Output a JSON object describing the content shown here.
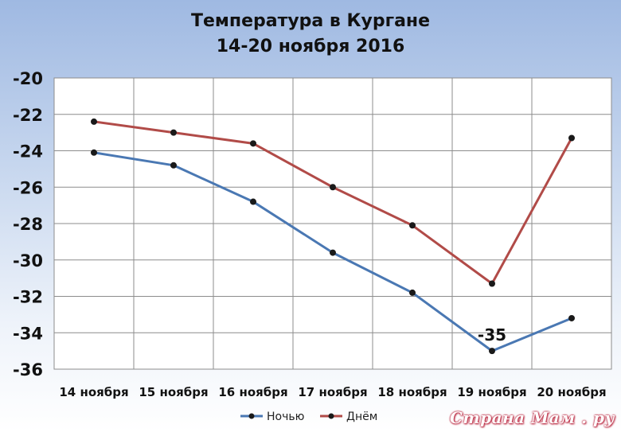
{
  "chart_data": {
    "type": "line",
    "title": "Температура в Кургане",
    "subtitle": "14-20 ноября 2016",
    "categories": [
      "14 ноября",
      "15 ноября",
      "16 ноября",
      "17 ноября",
      "18 ноября",
      "19 ноября",
      "20 ноября"
    ],
    "series": [
      {
        "name": "Ночью",
        "color": "#4a78b3",
        "values": [
          -24.1,
          -24.8,
          -26.8,
          -29.6,
          -31.8,
          -35.0,
          -33.2
        ]
      },
      {
        "name": "Днём",
        "color": "#b14b48",
        "values": [
          -22.4,
          -23.0,
          -23.6,
          -26.0,
          -28.1,
          -31.3,
          -23.3
        ]
      }
    ],
    "ylim": [
      -36,
      -20
    ],
    "y_ticks": [
      "-20",
      "-22",
      "-24",
      "-26",
      "-28",
      "-30",
      "-32",
      "-34",
      "-36"
    ],
    "grid": true,
    "legend": "bottom",
    "annotations": [
      {
        "text": "-35",
        "series": "Ночью",
        "category": "19 ноября"
      }
    ]
  },
  "watermark": "Страна Мам . ру"
}
